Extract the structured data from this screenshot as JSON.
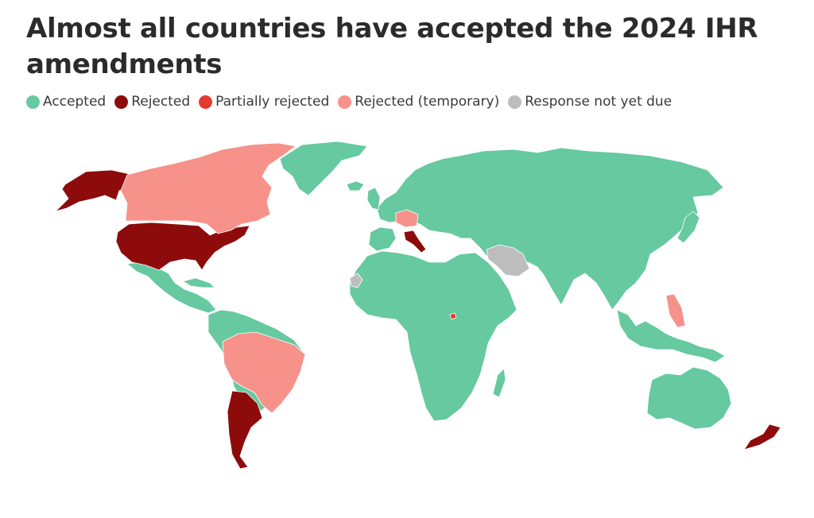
{
  "title": "Almost all countries have accepted the 2024 IHR amendments",
  "legend": [
    {
      "label": "Accepted",
      "color": "#66c9a0"
    },
    {
      "label": "Rejected",
      "color": "#8e0b0b"
    },
    {
      "label": "Partially rejected",
      "color": "#e23a2c"
    },
    {
      "label": "Rejected (temporary)",
      "color": "#f6928a"
    },
    {
      "label": "Response not yet due",
      "color": "#bdbdbd"
    }
  ]
}
